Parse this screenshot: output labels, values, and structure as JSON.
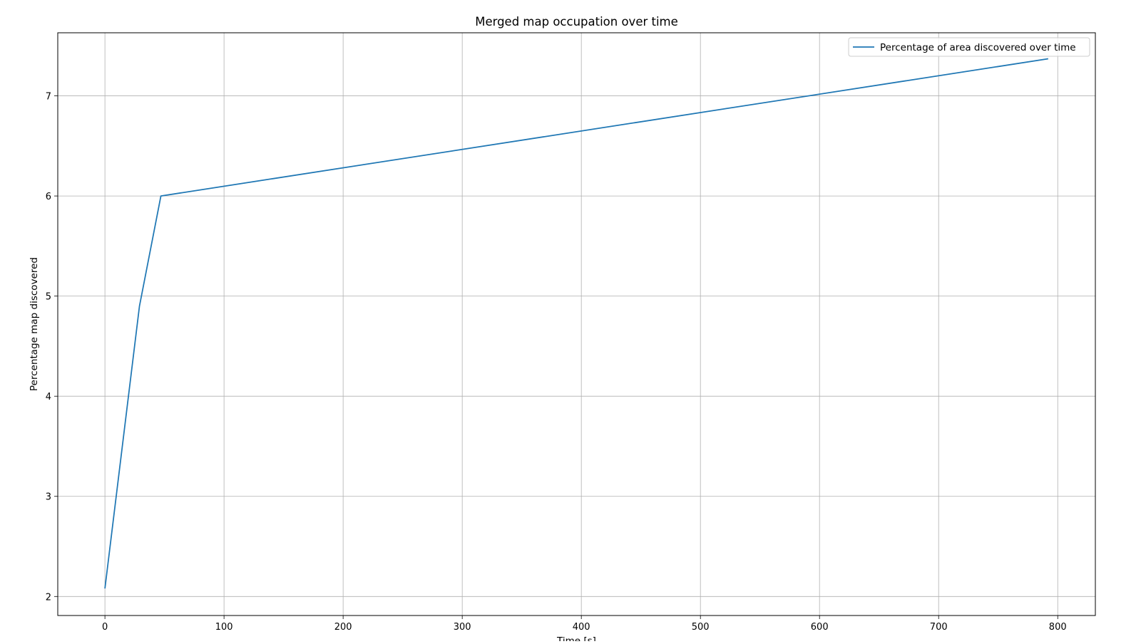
{
  "chart_data": {
    "type": "line",
    "title": "Merged map occupation over time",
    "xlabel": "Time [s]",
    "ylabel": "Percentage map discovered",
    "xlim": [
      -39.6,
      831.6
    ],
    "ylim": [
      1.81,
      7.63
    ],
    "xticks": [
      0,
      100,
      200,
      300,
      400,
      500,
      600,
      700,
      800
    ],
    "yticks": [
      2,
      3,
      4,
      5,
      6,
      7
    ],
    "grid": true,
    "legend_position": "top-right",
    "series": [
      {
        "name": "Percentage of area discovered over time",
        "color": "#1f77b4",
        "x": [
          0,
          29,
          47,
          792
        ],
        "y": [
          2.08,
          4.9,
          6.0,
          7.37
        ]
      }
    ]
  }
}
